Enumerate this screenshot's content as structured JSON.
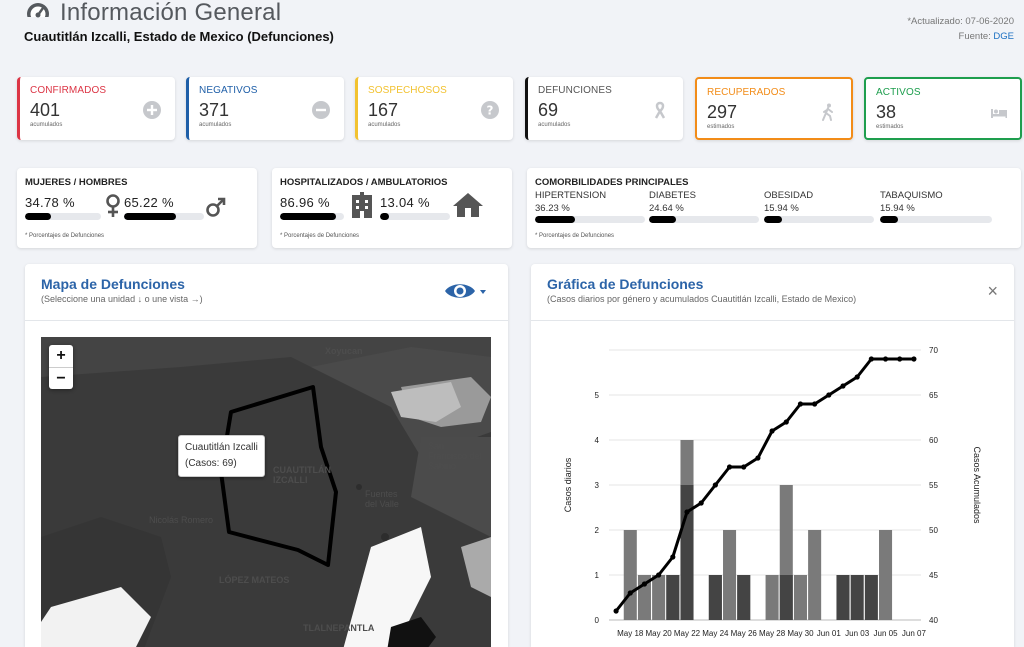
{
  "header": {
    "title": "Información General",
    "subtitle": "Cuautitlán Izcalli, Estado de Mexico (Defunciones)",
    "updated": "*Actualizado: 07-06-2020",
    "source_label": "Fuente:",
    "source_value": "DGE"
  },
  "stats": [
    {
      "label": "CONFIRMADOS",
      "value": "401",
      "sub": "acumulados",
      "icon": "plus-circle-icon",
      "color": "#dc3545"
    },
    {
      "label": "NEGATIVOS",
      "value": "371",
      "sub": "acumulados",
      "icon": "minus-circle-icon",
      "color": "#1f5fa8"
    },
    {
      "label": "SOSPECHOSOS",
      "value": "167",
      "sub": "acumulados",
      "icon": "question-circle-icon",
      "color": "#f2c230"
    },
    {
      "label": "DEFUNCIONES",
      "value": "69",
      "sub": "acumulados",
      "icon": "ribbon-icon",
      "color": "#111111"
    },
    {
      "label": "RECUPERADOS",
      "value": "297",
      "sub": "estimados",
      "icon": "walking-icon",
      "color": "#f28c18"
    },
    {
      "label": "ACTIVOS",
      "value": "38",
      "sub": "estimados",
      "icon": "bed-icon",
      "color": "#1e9e4e"
    }
  ],
  "gender": {
    "title": "MUJERES / HOMBRES",
    "women": "34.78 %",
    "women_frac": 0.3478,
    "men": "65.22 %",
    "men_frac": 0.6522,
    "note": "* Porcentajes de Defunciones"
  },
  "hosp": {
    "title": "HOSPITALIZADOS / AMBULATORIOS",
    "hosp": "86.96 %",
    "hosp_frac": 0.8696,
    "amb": "13.04 %",
    "amb_frac": 0.1304,
    "note": "* Porcentajes de Defunciones"
  },
  "comorb": {
    "title": "COMORBILIDADES PRINCIPALES",
    "note": "* Porcentajes de Defunciones",
    "items": [
      {
        "label": "HIPERTENSION",
        "value": "36.23 %",
        "frac": 0.3623
      },
      {
        "label": "DIABETES",
        "value": "24.64 %",
        "frac": 0.2464
      },
      {
        "label": "OBESIDAD",
        "value": "15.94 %",
        "frac": 0.1594
      },
      {
        "label": "TABAQUISMO",
        "value": "15.94 %",
        "frac": 0.1594
      }
    ]
  },
  "map_panel": {
    "title": "Mapa de Defunciones",
    "subtitle": "(Seleccione una unidad ↓ o une vista →)",
    "zoom_in": "+",
    "zoom_out": "−",
    "tooltip_name": "Cuautitlán Izcalli",
    "tooltip_value": "(Casos: 69)",
    "labels": [
      "Xoyucan",
      "CUAUTITLÁN IZCALLI",
      "LÓPEZ MATEOS",
      "TLALNEPANTLA",
      "Nicolás Romero",
      "Fuentes del Valle",
      "San Francisco del Sabino"
    ]
  },
  "chart_panel": {
    "title": "Gráfica de Defunciones",
    "subtitle": "(Casos diarios por género y acumulados Cuautitlán Izcalli, Estado de Mexico)",
    "close": "×"
  },
  "chart_data": {
    "type": "bar",
    "ylabel": "Casos diarios",
    "y2label": "Casos Acumulados",
    "ylim": [
      0,
      6
    ],
    "y2lim": [
      40,
      70
    ],
    "yticks": [
      0,
      1,
      2,
      3,
      4,
      5
    ],
    "y2ticks": [
      40,
      45,
      50,
      55,
      60,
      65,
      70
    ],
    "xticks": [
      "May 18",
      "May 20",
      "May 22",
      "May 24",
      "May 26",
      "May 28",
      "May 30",
      "Jun 01",
      "Jun 03",
      "Jun 05",
      "Jun 07"
    ],
    "days": [
      "May 17",
      "May 18",
      "May 19",
      "May 20",
      "May 21",
      "May 22",
      "May 23",
      "May 24",
      "May 25",
      "May 26",
      "May 27",
      "May 28",
      "May 29",
      "May 30",
      "May 31",
      "Jun 01",
      "Jun 02",
      "Jun 03",
      "Jun 04",
      "Jun 05",
      "Jun 06",
      "Jun 07"
    ],
    "series": [
      {
        "values": [
          0,
          2,
          1,
          1,
          1,
          4,
          0,
          1,
          2,
          1,
          0,
          1,
          3,
          1,
          2,
          0,
          1,
          0,
          0,
          2,
          0,
          0
        ],
        "color": "#7a7a7a"
      },
      {
        "values": [
          0,
          0,
          0,
          0,
          1,
          3,
          0,
          1,
          0,
          1,
          0,
          0,
          1,
          0,
          0,
          0,
          1,
          1,
          1,
          0,
          0,
          0
        ],
        "color": "#444444"
      }
    ],
    "cumulative": [
      41,
      43,
      44,
      45,
      47,
      52,
      53,
      55,
      57,
      57,
      58,
      61,
      62,
      64,
      64,
      65,
      66,
      67,
      69,
      69,
      69,
      69
    ]
  }
}
